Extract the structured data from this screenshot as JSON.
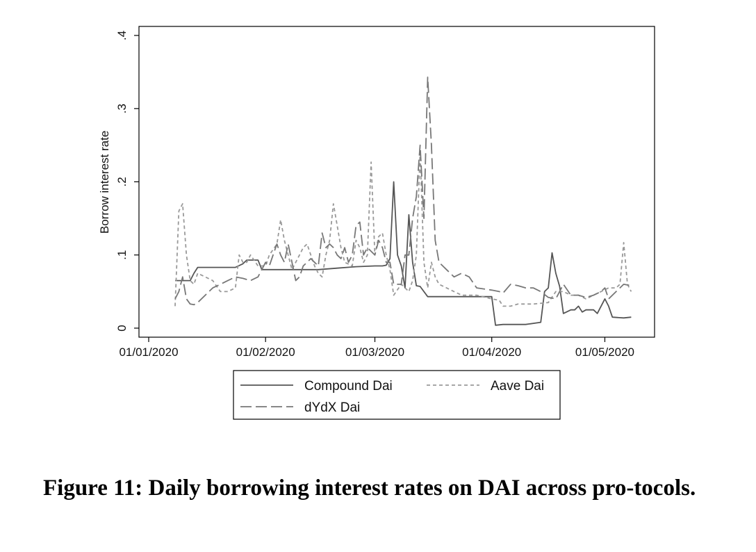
{
  "chart_data": {
    "type": "line",
    "ylabel": "Borrow interest rate",
    "ylim": [
      0,
      0.4
    ],
    "yticks": [
      0,
      0.1,
      0.2,
      0.3,
      0.4
    ],
    "ytick_labels": [
      "0",
      ".1",
      ".2",
      ".3",
      ".4"
    ],
    "xlim": [
      "2020-01-01",
      "2020-05-14"
    ],
    "xticks": [
      "2020-01-01",
      "2020-02-01",
      "2020-03-01",
      "2020-04-01",
      "2020-05-01"
    ],
    "xtick_labels": [
      "01/01/2020",
      "01/02/2020",
      "01/03/2020",
      "01/04/2020",
      "01/05/2020"
    ],
    "grid": false,
    "legend_position": "bottom",
    "series": [
      {
        "name": "Compound Dai",
        "color": "#555555",
        "dash": "solid",
        "points": [
          [
            "2020-01-08",
            0.065
          ],
          [
            "2020-01-10",
            0.065
          ],
          [
            "2020-01-12",
            0.065
          ],
          [
            "2020-01-13",
            0.075
          ],
          [
            "2020-01-14",
            0.083
          ],
          [
            "2020-01-16",
            0.083
          ],
          [
            "2020-01-20",
            0.083
          ],
          [
            "2020-01-24",
            0.083
          ],
          [
            "2020-01-26",
            0.088
          ],
          [
            "2020-01-27",
            0.093
          ],
          [
            "2020-01-30",
            0.093
          ],
          [
            "2020-01-31",
            0.08
          ],
          [
            "2020-02-05",
            0.08
          ],
          [
            "2020-02-10",
            0.08
          ],
          [
            "2020-02-15",
            0.08
          ],
          [
            "2020-02-20",
            0.082
          ],
          [
            "2020-02-25",
            0.084
          ],
          [
            "2020-03-01",
            0.085
          ],
          [
            "2020-03-03",
            0.085
          ],
          [
            "2020-03-04",
            0.086
          ],
          [
            "2020-03-05",
            0.095
          ],
          [
            "2020-03-06",
            0.2
          ],
          [
            "2020-03-07",
            0.1
          ],
          [
            "2020-03-08",
            0.085
          ],
          [
            "2020-03-09",
            0.055
          ],
          [
            "2020-03-10",
            0.155
          ],
          [
            "2020-03-11",
            0.09
          ],
          [
            "2020-03-12",
            0.058
          ],
          [
            "2020-03-13",
            0.057
          ],
          [
            "2020-03-15",
            0.043
          ],
          [
            "2020-03-20",
            0.043
          ],
          [
            "2020-03-25",
            0.043
          ],
          [
            "2020-03-30",
            0.043
          ],
          [
            "2020-04-01",
            0.043
          ],
          [
            "2020-04-02",
            0.004
          ],
          [
            "2020-04-04",
            0.005
          ],
          [
            "2020-04-10",
            0.005
          ],
          [
            "2020-04-14",
            0.008
          ],
          [
            "2020-04-15",
            0.05
          ],
          [
            "2020-04-16",
            0.055
          ],
          [
            "2020-04-17",
            0.103
          ],
          [
            "2020-04-18",
            0.075
          ],
          [
            "2020-04-19",
            0.057
          ],
          [
            "2020-04-20",
            0.02
          ],
          [
            "2020-04-22",
            0.025
          ],
          [
            "2020-04-23",
            0.025
          ],
          [
            "2020-04-24",
            0.03
          ],
          [
            "2020-04-25",
            0.022
          ],
          [
            "2020-04-26",
            0.025
          ],
          [
            "2020-04-28",
            0.025
          ],
          [
            "2020-04-29",
            0.02
          ],
          [
            "2020-05-01",
            0.04
          ],
          [
            "2020-05-02",
            0.03
          ],
          [
            "2020-05-03",
            0.015
          ],
          [
            "2020-05-06",
            0.014
          ],
          [
            "2020-05-08",
            0.015
          ]
        ]
      },
      {
        "name": "Aave Dai",
        "color": "#999999",
        "dash": "5,4",
        "points": [
          [
            "2020-01-08",
            0.03
          ],
          [
            "2020-01-09",
            0.16
          ],
          [
            "2020-01-10",
            0.17
          ],
          [
            "2020-01-11",
            0.1
          ],
          [
            "2020-01-12",
            0.065
          ],
          [
            "2020-01-13",
            0.06
          ],
          [
            "2020-01-14",
            0.075
          ],
          [
            "2020-01-16",
            0.07
          ],
          [
            "2020-01-18",
            0.065
          ],
          [
            "2020-01-20",
            0.05
          ],
          [
            "2020-01-22",
            0.05
          ],
          [
            "2020-01-24",
            0.055
          ],
          [
            "2020-01-25",
            0.1
          ],
          [
            "2020-01-26",
            0.09
          ],
          [
            "2020-01-27",
            0.09
          ],
          [
            "2020-01-28",
            0.1
          ],
          [
            "2020-01-30",
            0.085
          ],
          [
            "2020-02-01",
            0.085
          ],
          [
            "2020-02-02",
            0.1
          ],
          [
            "2020-02-04",
            0.115
          ],
          [
            "2020-02-05",
            0.148
          ],
          [
            "2020-02-06",
            0.12
          ],
          [
            "2020-02-07",
            0.1
          ],
          [
            "2020-02-08",
            0.08
          ],
          [
            "2020-02-09",
            0.09
          ],
          [
            "2020-02-10",
            0.1
          ],
          [
            "2020-02-11",
            0.11
          ],
          [
            "2020-02-12",
            0.115
          ],
          [
            "2020-02-13",
            0.1
          ],
          [
            "2020-02-14",
            0.085
          ],
          [
            "2020-02-15",
            0.075
          ],
          [
            "2020-02-16",
            0.07
          ],
          [
            "2020-02-17",
            0.1
          ],
          [
            "2020-02-18",
            0.12
          ],
          [
            "2020-02-19",
            0.17
          ],
          [
            "2020-02-20",
            0.14
          ],
          [
            "2020-02-21",
            0.11
          ],
          [
            "2020-02-22",
            0.09
          ],
          [
            "2020-02-24",
            0.085
          ],
          [
            "2020-02-25",
            0.12
          ],
          [
            "2020-02-26",
            0.11
          ],
          [
            "2020-02-27",
            0.09
          ],
          [
            "2020-02-28",
            0.1
          ],
          [
            "2020-02-29",
            0.227
          ],
          [
            "2020-03-01",
            0.1
          ],
          [
            "2020-03-02",
            0.125
          ],
          [
            "2020-03-03",
            0.13
          ],
          [
            "2020-03-04",
            0.1
          ],
          [
            "2020-03-05",
            0.08
          ],
          [
            "2020-03-06",
            0.045
          ],
          [
            "2020-03-08",
            0.06
          ],
          [
            "2020-03-09",
            0.055
          ],
          [
            "2020-03-10",
            0.05
          ],
          [
            "2020-03-11",
            0.065
          ],
          [
            "2020-03-12",
            0.1
          ],
          [
            "2020-03-13",
            0.24
          ],
          [
            "2020-03-14",
            0.09
          ],
          [
            "2020-03-15",
            0.055
          ],
          [
            "2020-03-16",
            0.09
          ],
          [
            "2020-03-17",
            0.07
          ],
          [
            "2020-03-18",
            0.06
          ],
          [
            "2020-03-20",
            0.055
          ],
          [
            "2020-03-22",
            0.05
          ],
          [
            "2020-03-24",
            0.045
          ],
          [
            "2020-03-28",
            0.045
          ],
          [
            "2020-04-01",
            0.04
          ],
          [
            "2020-04-03",
            0.038
          ],
          [
            "2020-04-04",
            0.03
          ],
          [
            "2020-04-06",
            0.03
          ],
          [
            "2020-04-08",
            0.033
          ],
          [
            "2020-04-12",
            0.033
          ],
          [
            "2020-04-16",
            0.035
          ],
          [
            "2020-04-18",
            0.05
          ],
          [
            "2020-04-20",
            0.05
          ],
          [
            "2020-04-22",
            0.045
          ],
          [
            "2020-04-24",
            0.045
          ],
          [
            "2020-04-26",
            0.04
          ],
          [
            "2020-04-28",
            0.045
          ],
          [
            "2020-04-30",
            0.05
          ],
          [
            "2020-05-02",
            0.055
          ],
          [
            "2020-05-04",
            0.055
          ],
          [
            "2020-05-05",
            0.06
          ],
          [
            "2020-05-06",
            0.117
          ],
          [
            "2020-05-07",
            0.06
          ],
          [
            "2020-05-08",
            0.05
          ]
        ]
      },
      {
        "name": "dYdX Dai",
        "color": "#777777",
        "dash": "16,6",
        "points": [
          [
            "2020-01-08",
            0.04
          ],
          [
            "2020-01-09",
            0.05
          ],
          [
            "2020-01-10",
            0.07
          ],
          [
            "2020-01-11",
            0.04
          ],
          [
            "2020-01-12",
            0.033
          ],
          [
            "2020-01-13",
            0.032
          ],
          [
            "2020-01-14",
            0.035
          ],
          [
            "2020-01-16",
            0.045
          ],
          [
            "2020-01-18",
            0.055
          ],
          [
            "2020-01-20",
            0.06
          ],
          [
            "2020-01-22",
            0.065
          ],
          [
            "2020-01-24",
            0.07
          ],
          [
            "2020-01-26",
            0.068
          ],
          [
            "2020-01-28",
            0.065
          ],
          [
            "2020-01-30",
            0.07
          ],
          [
            "2020-02-01",
            0.09
          ],
          [
            "2020-02-02",
            0.085
          ],
          [
            "2020-02-03",
            0.1
          ],
          [
            "2020-02-04",
            0.115
          ],
          [
            "2020-02-05",
            0.1
          ],
          [
            "2020-02-06",
            0.09
          ],
          [
            "2020-02-07",
            0.115
          ],
          [
            "2020-02-08",
            0.09
          ],
          [
            "2020-02-09",
            0.065
          ],
          [
            "2020-02-10",
            0.07
          ],
          [
            "2020-02-11",
            0.085
          ],
          [
            "2020-02-12",
            0.09
          ],
          [
            "2020-02-13",
            0.095
          ],
          [
            "2020-02-14",
            0.09
          ],
          [
            "2020-02-15",
            0.085
          ],
          [
            "2020-02-16",
            0.13
          ],
          [
            "2020-02-17",
            0.11
          ],
          [
            "2020-02-18",
            0.115
          ],
          [
            "2020-02-19",
            0.11
          ],
          [
            "2020-02-20",
            0.1
          ],
          [
            "2020-02-21",
            0.095
          ],
          [
            "2020-02-22",
            0.11
          ],
          [
            "2020-02-23",
            0.09
          ],
          [
            "2020-02-24",
            0.1
          ],
          [
            "2020-02-25",
            0.14
          ],
          [
            "2020-02-26",
            0.145
          ],
          [
            "2020-02-27",
            0.1
          ],
          [
            "2020-02-28",
            0.11
          ],
          [
            "2020-03-01",
            0.1
          ],
          [
            "2020-03-02",
            0.12
          ],
          [
            "2020-03-03",
            0.11
          ],
          [
            "2020-03-04",
            0.09
          ],
          [
            "2020-03-05",
            0.09
          ],
          [
            "2020-03-06",
            0.06
          ],
          [
            "2020-03-07",
            0.06
          ],
          [
            "2020-03-08",
            0.06
          ],
          [
            "2020-03-09",
            0.1
          ],
          [
            "2020-03-10",
            0.1
          ],
          [
            "2020-03-11",
            0.15
          ],
          [
            "2020-03-12",
            0.18
          ],
          [
            "2020-03-13",
            0.25
          ],
          [
            "2020-03-14",
            0.15
          ],
          [
            "2020-03-15",
            0.343
          ],
          [
            "2020-03-16",
            0.25
          ],
          [
            "2020-03-17",
            0.12
          ],
          [
            "2020-03-18",
            0.09
          ],
          [
            "2020-03-20",
            0.08
          ],
          [
            "2020-03-22",
            0.07
          ],
          [
            "2020-03-24",
            0.075
          ],
          [
            "2020-03-26",
            0.07
          ],
          [
            "2020-03-28",
            0.055
          ],
          [
            "2020-04-01",
            0.052
          ],
          [
            "2020-04-03",
            0.05
          ],
          [
            "2020-04-04",
            0.048
          ],
          [
            "2020-04-06",
            0.06
          ],
          [
            "2020-04-08",
            0.058
          ],
          [
            "2020-04-10",
            0.055
          ],
          [
            "2020-04-12",
            0.055
          ],
          [
            "2020-04-14",
            0.05
          ],
          [
            "2020-04-16",
            0.042
          ],
          [
            "2020-04-18",
            0.04
          ],
          [
            "2020-04-20",
            0.06
          ],
          [
            "2020-04-22",
            0.045
          ],
          [
            "2020-04-24",
            0.045
          ],
          [
            "2020-04-26",
            0.042
          ],
          [
            "2020-04-28",
            0.045
          ],
          [
            "2020-04-30",
            0.05
          ],
          [
            "2020-05-01",
            0.055
          ],
          [
            "2020-05-02",
            0.04
          ],
          [
            "2020-05-04",
            0.05
          ],
          [
            "2020-05-06",
            0.06
          ],
          [
            "2020-05-08",
            0.058
          ]
        ]
      }
    ]
  },
  "caption": "Figure 11: Daily borrowing interest rates on DAI across pro-tocols."
}
